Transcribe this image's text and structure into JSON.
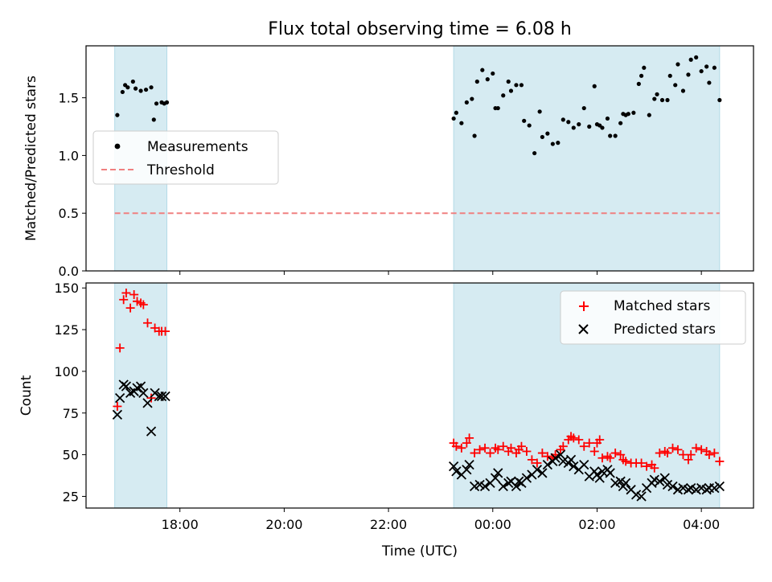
{
  "figure": {
    "title": "Flux total observing time = 6.08 h",
    "xlabel": "Time (UTC)"
  },
  "chart_data": [
    {
      "type": "scatter",
      "panel": "top",
      "ylabel": "Matched/Predicted stars",
      "xlim_hours": [
        16.2,
        29.0
      ],
      "ylim": [
        0,
        1.95
      ],
      "yticks": [
        0.0,
        0.5,
        1.0,
        1.5
      ],
      "ytick_labels": [
        "0.0",
        "0.5",
        "1.0",
        "1.5"
      ],
      "observing_intervals_hours": [
        [
          16.75,
          17.75
        ],
        [
          23.25,
          28.35
        ]
      ],
      "legend": {
        "placement": "center-left",
        "entries": [
          "Measurements",
          "Threshold"
        ]
      },
      "threshold": {
        "name": "Threshold",
        "value": 0.5,
        "x_range_hours": [
          16.75,
          28.35
        ],
        "color": "#f08080"
      },
      "series": [
        {
          "name": "Measurements",
          "color": "#000000",
          "marker": "dot",
          "x_hours": [
            16.8,
            16.9,
            16.95,
            17.0,
            17.1,
            17.15,
            17.25,
            17.35,
            17.45,
            17.5,
            17.55,
            17.65,
            17.7,
            17.75,
            23.25,
            23.3,
            23.4,
            23.5,
            23.6,
            23.65,
            23.7,
            23.8,
            23.9,
            24.0,
            24.05,
            24.1,
            24.2,
            24.3,
            24.35,
            24.45,
            24.55,
            24.6,
            24.7,
            24.8,
            24.9,
            24.95,
            25.05,
            25.15,
            25.25,
            25.35,
            25.45,
            25.55,
            25.65,
            25.75,
            25.85,
            25.95,
            26.0,
            26.05,
            26.1,
            26.2,
            26.25,
            26.35,
            26.45,
            26.5,
            26.55,
            26.6,
            26.7,
            26.8,
            26.85,
            26.9,
            27.0,
            27.1,
            27.15,
            27.25,
            27.35,
            27.4,
            27.5,
            27.55,
            27.65,
            27.75,
            27.8,
            27.9,
            28.0,
            28.1,
            28.15,
            28.25,
            28.35
          ],
          "y": [
            1.35,
            1.55,
            1.61,
            1.59,
            1.64,
            1.58,
            1.56,
            1.57,
            1.59,
            1.31,
            1.45,
            1.46,
            1.45,
            1.46,
            1.32,
            1.37,
            1.28,
            1.46,
            1.49,
            1.17,
            1.64,
            1.74,
            1.66,
            1.71,
            1.41,
            1.41,
            1.52,
            1.64,
            1.56,
            1.61,
            1.61,
            1.3,
            1.26,
            1.02,
            1.38,
            1.16,
            1.19,
            1.1,
            1.11,
            1.31,
            1.29,
            1.24,
            1.27,
            1.41,
            1.25,
            1.6,
            1.27,
            1.26,
            1.24,
            1.32,
            1.17,
            1.17,
            1.28,
            1.36,
            1.35,
            1.36,
            1.37,
            1.62,
            1.69,
            1.76,
            1.35,
            1.49,
            1.53,
            1.48,
            1.48,
            1.69,
            1.61,
            1.79,
            1.56,
            1.7,
            1.83,
            1.85,
            1.73,
            1.77,
            1.63,
            1.76,
            1.48
          ]
        }
      ]
    },
    {
      "type": "scatter",
      "panel": "bottom",
      "ylabel": "Count",
      "xlim_hours": [
        16.2,
        29.0
      ],
      "ylim": [
        18,
        153
      ],
      "yticks": [
        25,
        50,
        75,
        100,
        125,
        150
      ],
      "ytick_labels": [
        "25",
        "50",
        "75",
        "100",
        "125",
        "150"
      ],
      "xticks_hours": [
        18,
        20,
        22,
        24,
        26,
        28
      ],
      "xtick_labels": [
        "18:00",
        "20:00",
        "22:00",
        "00:00",
        "02:00",
        "04:00"
      ],
      "observing_intervals_hours": [
        [
          16.75,
          17.75
        ],
        [
          23.25,
          28.35
        ]
      ],
      "legend": {
        "placement": "upper-right",
        "entries": [
          "Matched stars",
          "Predicted stars"
        ]
      },
      "series": [
        {
          "name": "Matched stars",
          "color": "#ff0000",
          "marker": "plus",
          "x_hours": [
            16.8,
            16.85,
            16.92,
            16.97,
            17.05,
            17.12,
            17.18,
            17.25,
            17.3,
            17.38,
            17.45,
            17.52,
            17.6,
            17.65,
            17.72,
            23.25,
            23.3,
            23.4,
            23.5,
            23.55,
            23.65,
            23.75,
            23.85,
            23.95,
            24.05,
            24.1,
            24.2,
            24.3,
            24.35,
            24.45,
            24.5,
            24.55,
            24.65,
            24.75,
            24.85,
            24.95,
            25.05,
            25.15,
            25.2,
            25.3,
            25.35,
            25.45,
            25.5,
            25.55,
            25.65,
            25.75,
            25.85,
            25.95,
            26.0,
            26.05,
            26.1,
            26.2,
            26.25,
            26.35,
            26.45,
            26.5,
            26.55,
            26.65,
            26.75,
            26.85,
            26.95,
            27.05,
            27.1,
            27.2,
            27.3,
            27.35,
            27.45,
            27.55,
            27.65,
            27.75,
            27.8,
            27.9,
            28.0,
            28.1,
            28.15,
            28.25,
            28.35
          ],
          "y": [
            79,
            114,
            143,
            147,
            138,
            146,
            142,
            141,
            140,
            129,
            84,
            126,
            124,
            124,
            124,
            57,
            55,
            54,
            57,
            60,
            51,
            53,
            54,
            51,
            54,
            53,
            55,
            52,
            54,
            51,
            53,
            55,
            52,
            47,
            45,
            51,
            49,
            48,
            50,
            53,
            55,
            59,
            61,
            60,
            59,
            55,
            57,
            52,
            57,
            59,
            48,
            49,
            48,
            51,
            50,
            47,
            46,
            45,
            45,
            45,
            43,
            44,
            42,
            51,
            52,
            51,
            54,
            53,
            50,
            47,
            50,
            54,
            53,
            52,
            50,
            51,
            46
          ],
          "note_markers_overlap": false
        },
        {
          "name": "Predicted stars",
          "color": "#000000",
          "marker": "x",
          "x_hours": [
            16.8,
            16.85,
            16.92,
            16.97,
            17.05,
            17.12,
            17.18,
            17.25,
            17.3,
            17.38,
            17.45,
            17.52,
            17.6,
            17.65,
            17.72,
            23.25,
            23.3,
            23.4,
            23.5,
            23.55,
            23.65,
            23.75,
            23.85,
            23.95,
            24.05,
            24.1,
            24.2,
            24.3,
            24.35,
            24.45,
            24.5,
            24.55,
            24.65,
            24.75,
            24.85,
            24.95,
            25.05,
            25.15,
            25.2,
            25.3,
            25.35,
            25.45,
            25.5,
            25.55,
            25.65,
            25.75,
            25.85,
            25.95,
            26.0,
            26.05,
            26.1,
            26.2,
            26.25,
            26.35,
            26.45,
            26.5,
            26.55,
            26.65,
            26.75,
            26.85,
            26.95,
            27.05,
            27.1,
            27.2,
            27.3,
            27.35,
            27.45,
            27.55,
            27.65,
            27.75,
            27.8,
            27.9,
            28.0,
            28.1,
            28.15,
            28.25,
            28.35
          ],
          "y": [
            74,
            84,
            92,
            91,
            87,
            88,
            90,
            91,
            87,
            81,
            64,
            87,
            85,
            85,
            85,
            43,
            40,
            38,
            41,
            44,
            31,
            32,
            31,
            33,
            36,
            39,
            31,
            33,
            34,
            31,
            34,
            33,
            36,
            38,
            41,
            39,
            44,
            46,
            48,
            50,
            46,
            45,
            47,
            43,
            41,
            44,
            37,
            40,
            38,
            36,
            40,
            41,
            39,
            33,
            34,
            31,
            33,
            29,
            26,
            25,
            30,
            33,
            35,
            34,
            36,
            32,
            31,
            29,
            30,
            29,
            30,
            29,
            30,
            29,
            30,
            30,
            31
          ]
        }
      ]
    }
  ]
}
